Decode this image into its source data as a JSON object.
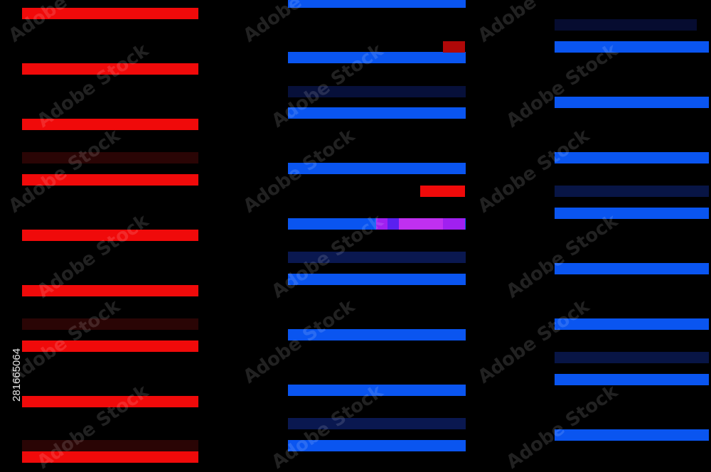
{
  "watermark": "Adobe Stock",
  "image_id": "281665064"
}
